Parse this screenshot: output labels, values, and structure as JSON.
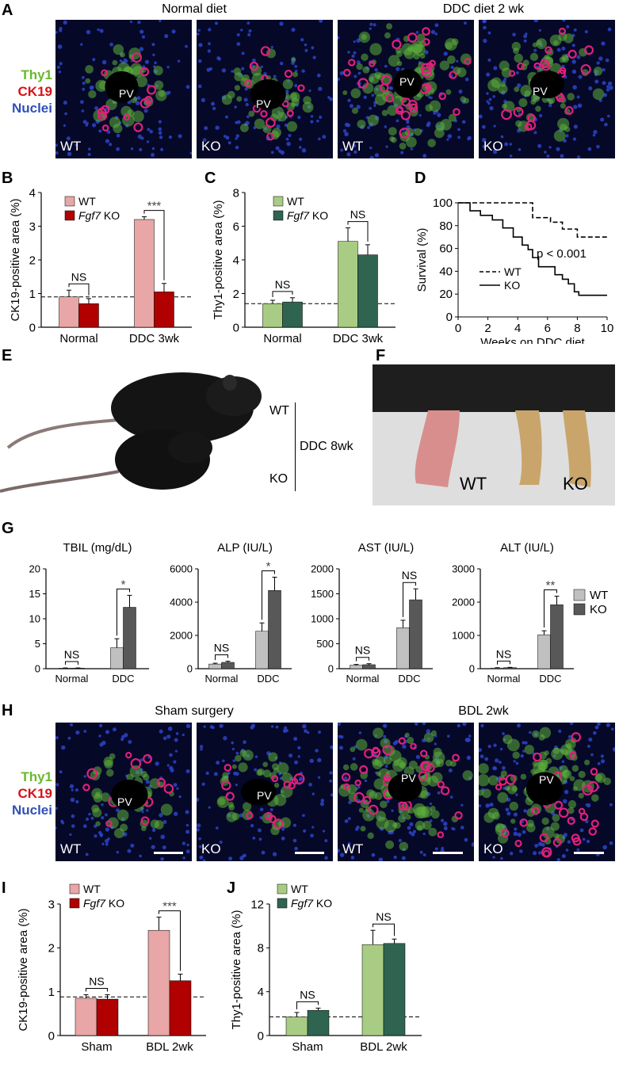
{
  "panels": {
    "A": {
      "letter": "A",
      "group_titles": [
        "Normal diet",
        "DDC diet 2 wk"
      ],
      "stain_labels": [
        "Thy1",
        "CK19",
        "Nuclei"
      ],
      "image_labels": [
        "WT",
        "KO",
        "WT",
        "KO"
      ],
      "vessel_label": "PV"
    },
    "E": {
      "letter": "E",
      "label_wt": "WT",
      "label_ko": "KO",
      "label_condition": "DDC 8wk"
    },
    "F": {
      "letter": "F",
      "label_wt": "WT",
      "label_ko": "KO"
    },
    "G": {
      "letter": "G"
    },
    "H": {
      "letter": "H",
      "group_titles": [
        "Sham surgery",
        "BDL 2wk"
      ],
      "stain_labels": [
        "Thy1",
        "CK19",
        "Nuclei"
      ],
      "image_labels": [
        "WT",
        "KO",
        "WT",
        "KO"
      ],
      "vessel_label": "PV"
    }
  },
  "colors": {
    "ck19_wt": "#e8a6a6",
    "ck19_ko": "#b00000",
    "thy1_wt": "#a9cc84",
    "thy1_ko": "#2f6450",
    "g_wt": "#c0c0c0",
    "g_ko": "#585858",
    "thy1_stain": "#6ab82e",
    "ck19_stain": "#d7121a",
    "nuclei_stain": "#3050b8"
  },
  "chart_data": [
    {
      "panel": "B",
      "type": "bar",
      "ylabel": "CK19-positive area (%)",
      "categories": [
        "Normal",
        "DDC 3wk"
      ],
      "series": [
        {
          "name": "WT",
          "values": [
            0.9,
            3.2
          ],
          "errors": [
            0.2,
            0.08
          ]
        },
        {
          "name": "Fgf7 KO",
          "values": [
            0.7,
            1.05
          ],
          "errors": [
            0.15,
            0.25
          ]
        }
      ],
      "ylim": [
        0,
        4
      ],
      "yticks": [
        0,
        1,
        2,
        3,
        4
      ],
      "baseline": 0.9,
      "significance": [
        "NS",
        "***"
      ],
      "legend": [
        "WT",
        "Fgf7",
        " KO"
      ]
    },
    {
      "panel": "C",
      "type": "bar",
      "ylabel": "Thy1-positive area (%)",
      "categories": [
        "Normal",
        "DDC 3wk"
      ],
      "series": [
        {
          "name": "WT",
          "values": [
            1.4,
            5.1
          ],
          "errors": [
            0.2,
            0.8
          ]
        },
        {
          "name": "Fgf7 KO",
          "values": [
            1.5,
            4.3
          ],
          "errors": [
            0.25,
            0.6
          ]
        }
      ],
      "ylim": [
        0,
        8
      ],
      "yticks": [
        0,
        2,
        4,
        6,
        8
      ],
      "baseline": 1.4,
      "significance": [
        "NS",
        "NS"
      ],
      "legend": [
        "WT",
        "Fgf7",
        " KO"
      ]
    },
    {
      "panel": "D",
      "type": "line",
      "ylabel": "Survival (%)",
      "xlabel": "Weeks on DDC diet",
      "xlim": [
        0,
        10
      ],
      "ylim": [
        0,
        100
      ],
      "xticks": [
        0,
        2,
        4,
        6,
        8,
        10
      ],
      "yticks": [
        0,
        20,
        40,
        60,
        80,
        100
      ],
      "annotation": "p < 0.001",
      "series": [
        {
          "name": "WT",
          "style": "dashed",
          "x": [
            0,
            5,
            5,
            6.2,
            6.2,
            7,
            7,
            8,
            8,
            10
          ],
          "y": [
            100,
            100,
            87,
            87,
            83,
            83,
            77,
            77,
            70,
            70
          ]
        },
        {
          "name": "KO",
          "style": "solid",
          "x": [
            0,
            0.8,
            0.8,
            1.5,
            1.5,
            2.3,
            2.3,
            3,
            3,
            3.7,
            3.7,
            4.3,
            4.3,
            4.7,
            4.7,
            5,
            5,
            5.4,
            5.4,
            6.5,
            6.5,
            7,
            7,
            7.4,
            7.4,
            7.8,
            7.8,
            8.1,
            8.1,
            10
          ],
          "y": [
            100,
            100,
            93,
            93,
            89,
            89,
            85,
            85,
            78,
            78,
            70,
            70,
            63,
            63,
            59,
            59,
            52,
            52,
            44,
            44,
            37,
            37,
            33,
            33,
            29,
            29,
            22,
            22,
            19,
            19
          ]
        }
      ]
    },
    {
      "panel": "G1",
      "type": "bar",
      "title": "TBIL (mg/dL)",
      "categories": [
        "Normal",
        "DDC"
      ],
      "series": [
        {
          "name": "WT",
          "values": [
            0.1,
            4.2
          ],
          "errors": [
            0.05,
            1.8
          ]
        },
        {
          "name": "KO",
          "values": [
            0.1,
            12.3
          ],
          "errors": [
            0.05,
            2.4
          ]
        }
      ],
      "ylim": [
        0,
        20
      ],
      "yticks": [
        0,
        5,
        10,
        15,
        20
      ],
      "significance": [
        "NS",
        "*"
      ]
    },
    {
      "panel": "G2",
      "type": "bar",
      "title": "ALP (IU/L)",
      "categories": [
        "Normal",
        "DDC"
      ],
      "series": [
        {
          "name": "WT",
          "values": [
            280,
            2250
          ],
          "errors": [
            50,
            500
          ]
        },
        {
          "name": "KO",
          "values": [
            380,
            4700
          ],
          "errors": [
            70,
            800
          ]
        }
      ],
      "ylim": [
        0,
        6000
      ],
      "yticks": [
        0,
        2000,
        4000,
        6000
      ],
      "significance": [
        "NS",
        "*"
      ]
    },
    {
      "panel": "G3",
      "type": "bar",
      "title": "AST (IU/L)",
      "categories": [
        "Normal",
        "DDC"
      ],
      "series": [
        {
          "name": "WT",
          "values": [
            70,
            820
          ],
          "errors": [
            15,
            150
          ]
        },
        {
          "name": "KO",
          "values": [
            80,
            1380
          ],
          "errors": [
            20,
            220
          ]
        }
      ],
      "ylim": [
        0,
        2000
      ],
      "yticks": [
        0,
        500,
        1000,
        1500,
        2000
      ],
      "significance": [
        "NS",
        "NS"
      ]
    },
    {
      "panel": "G4",
      "type": "bar",
      "title": "ALT (IU/L)",
      "categories": [
        "Normal",
        "DDC"
      ],
      "series": [
        {
          "name": "WT",
          "values": [
            20,
            1020
          ],
          "errors": [
            10,
            120
          ]
        },
        {
          "name": "KO",
          "values": [
            30,
            1920
          ],
          "errors": [
            10,
            260
          ]
        }
      ],
      "ylim": [
        0,
        3000
      ],
      "yticks": [
        0,
        1000,
        2000,
        3000
      ],
      "significance": [
        "NS",
        "**"
      ],
      "legend": [
        "WT",
        "KO"
      ]
    },
    {
      "panel": "I",
      "type": "bar",
      "ylabel": "CK19-positive area (%)",
      "categories": [
        "Sham",
        "BDL 2wk"
      ],
      "series": [
        {
          "name": "WT",
          "values": [
            0.85,
            2.4
          ],
          "errors": [
            0.08,
            0.3
          ]
        },
        {
          "name": "Fgf7 KO",
          "values": [
            0.83,
            1.25
          ],
          "errors": [
            0.1,
            0.15
          ]
        }
      ],
      "ylim": [
        0,
        3
      ],
      "yticks": [
        0,
        1,
        2,
        3
      ],
      "baseline": 0.88,
      "significance": [
        "NS",
        "***"
      ],
      "legend": [
        "WT",
        "Fgf7",
        " KO"
      ]
    },
    {
      "panel": "J",
      "type": "bar",
      "ylabel": "Thy1-positive area (%)",
      "categories": [
        "Sham",
        "BDL 2wk"
      ],
      "series": [
        {
          "name": "WT",
          "values": [
            1.7,
            8.3
          ],
          "errors": [
            0.4,
            1.3
          ]
        },
        {
          "name": "Fgf7 KO",
          "values": [
            2.3,
            8.4
          ],
          "errors": [
            0.2,
            0.4
          ]
        }
      ],
      "ylim": [
        0,
        12
      ],
      "yticks": [
        0,
        4,
        8,
        12
      ],
      "baseline": 1.7,
      "significance": [
        "NS",
        "NS"
      ],
      "legend": [
        "WT",
        "Fgf7",
        " KO"
      ]
    }
  ]
}
